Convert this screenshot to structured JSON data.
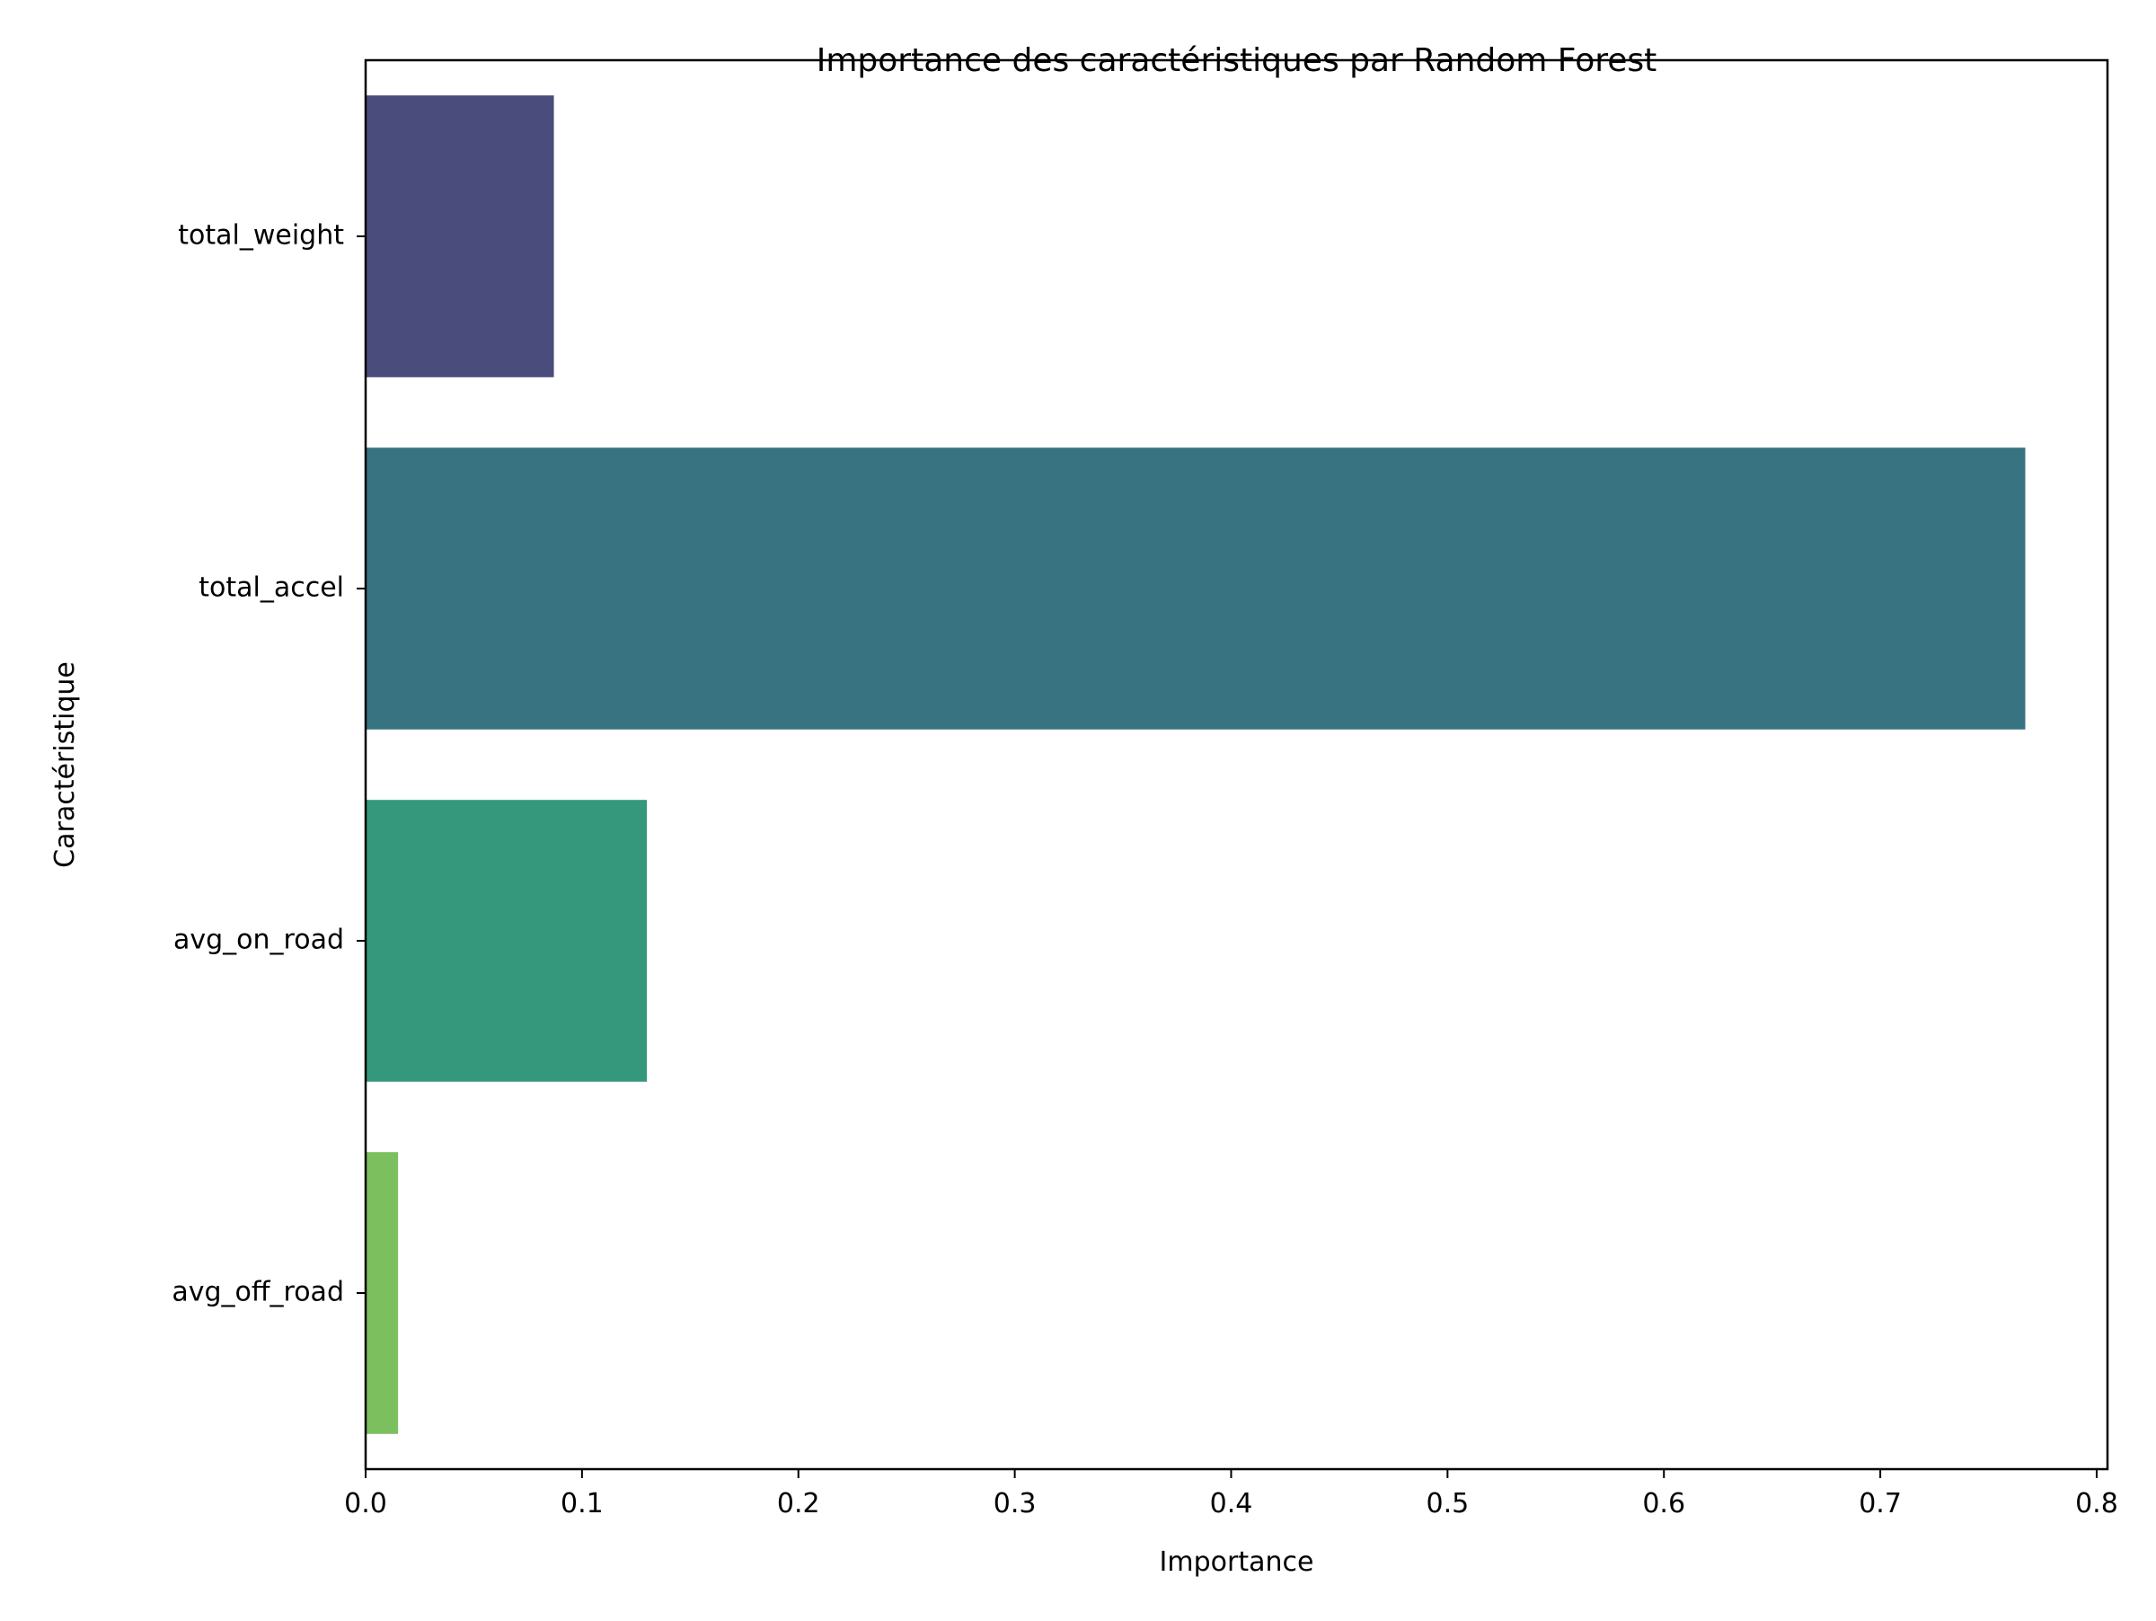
{
  "chart_data": {
    "type": "bar",
    "orientation": "horizontal",
    "title": "Importance des caractéristiques par Random Forest",
    "xlabel": "Importance",
    "ylabel": "Caractéristique",
    "categories": [
      "total_weight",
      "total_accel",
      "avg_on_road",
      "avg_off_road"
    ],
    "values": [
      0.087,
      0.767,
      0.13,
      0.015
    ],
    "colors": [
      "#4a4d7b",
      "#377380",
      "#35977b",
      "#7bbf5f"
    ],
    "xlim": [
      0,
      0.805
    ],
    "xticks": [
      0.0,
      0.1,
      0.2,
      0.3,
      0.4,
      0.5,
      0.6,
      0.7,
      0.8
    ],
    "xtick_labels": [
      "0.0",
      "0.1",
      "0.2",
      "0.3",
      "0.4",
      "0.5",
      "0.6",
      "0.7",
      "0.8"
    ],
    "grid": false,
    "legend": "none"
  }
}
